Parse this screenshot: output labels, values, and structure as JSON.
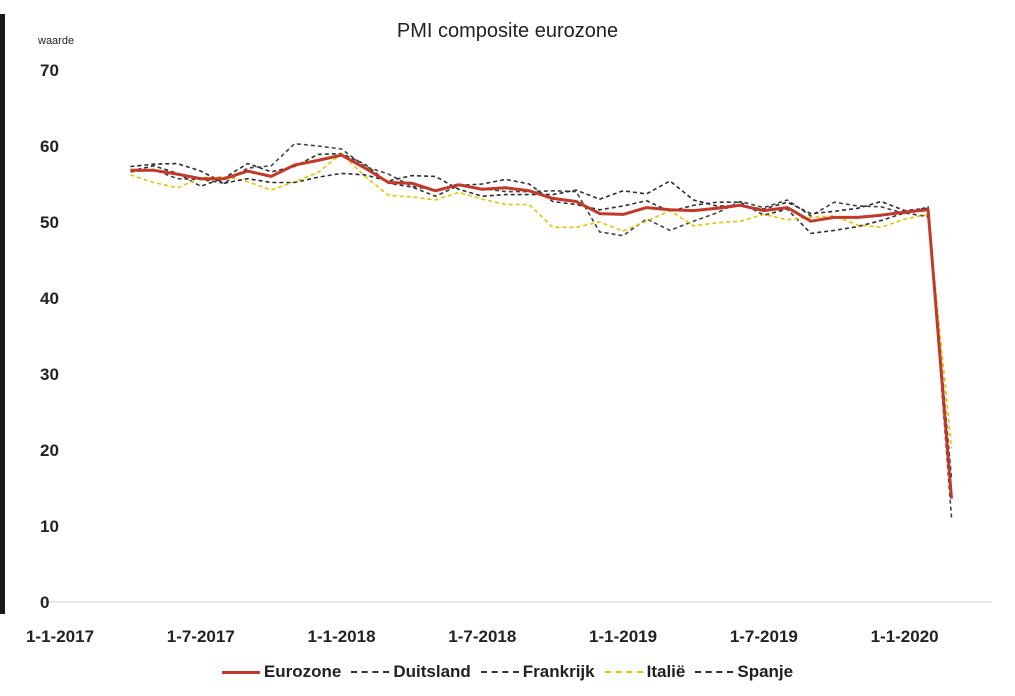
{
  "chart_data": {
    "type": "line",
    "title": "PMI composite eurozone",
    "ylabel": "waarde",
    "xlabel": "",
    "ylim": [
      0,
      70
    ],
    "yticks": [
      0,
      10,
      20,
      30,
      40,
      50,
      60,
      70
    ],
    "xticks": [
      "1-1-2017",
      "1-7-2017",
      "1-1-2018",
      "1-7-2018",
      "1-1-2019",
      "1-7-2019",
      "1-1-2020"
    ],
    "x": [
      "2017-04",
      "2017-05",
      "2017-06",
      "2017-07",
      "2017-08",
      "2017-09",
      "2017-10",
      "2017-11",
      "2017-12",
      "2018-01",
      "2018-02",
      "2018-03",
      "2018-04",
      "2018-05",
      "2018-06",
      "2018-07",
      "2018-08",
      "2018-09",
      "2018-10",
      "2018-11",
      "2018-12",
      "2019-01",
      "2019-02",
      "2019-03",
      "2019-04",
      "2019-05",
      "2019-06",
      "2019-07",
      "2019-08",
      "2019-09",
      "2019-10",
      "2019-11",
      "2019-12",
      "2020-01",
      "2020-02",
      "2020-03"
    ],
    "series": [
      {
        "name": "Eurozone",
        "color": "#c0392b",
        "style": "solid",
        "values": [
          56.8,
          56.8,
          56.3,
          55.7,
          55.7,
          56.7,
          56.0,
          57.5,
          58.1,
          58.8,
          57.1,
          55.2,
          55.1,
          54.1,
          54.9,
          54.3,
          54.5,
          54.1,
          53.1,
          52.7,
          51.1,
          51.0,
          51.9,
          51.6,
          51.5,
          51.8,
          52.2,
          51.5,
          51.9,
          50.1,
          50.6,
          50.6,
          50.9,
          51.3,
          51.6,
          13.6
        ]
      },
      {
        "name": "Duitsland",
        "color": "#333333",
        "style": "dashed",
        "values": [
          56.7,
          57.4,
          56.4,
          54.7,
          55.8,
          57.7,
          56.6,
          57.3,
          58.9,
          59.0,
          57.6,
          55.1,
          54.6,
          53.4,
          54.8,
          55.0,
          55.6,
          55.0,
          52.7,
          52.3,
          51.6,
          52.1,
          52.8,
          51.4,
          52.2,
          52.6,
          52.6,
          50.9,
          51.7,
          48.5,
          48.9,
          49.4,
          50.2,
          51.2,
          50.7,
          16.2
        ]
      },
      {
        "name": "Frankrijk",
        "color": "#444444",
        "style": "dashed",
        "values": [
          56.6,
          56.9,
          55.7,
          55.6,
          55.1,
          57.1,
          57.4,
          60.3,
          60.0,
          59.6,
          57.3,
          56.3,
          54.7,
          54.2,
          55.0,
          54.4,
          54.0,
          54.0,
          54.1,
          54.0,
          48.7,
          48.2,
          50.4,
          48.9,
          50.1,
          51.2,
          52.7,
          51.9,
          52.9,
          50.8,
          52.6,
          52.1,
          52.0,
          51.1,
          52.0,
          11.1
        ]
      },
      {
        "name": "Italië",
        "color": "#e6c200",
        "style": "dashed",
        "values": [
          56.2,
          55.2,
          54.5,
          55.8,
          56.0,
          55.3,
          54.2,
          55.3,
          56.5,
          59.0,
          56.0,
          53.5,
          53.3,
          52.9,
          53.9,
          53.0,
          52.3,
          52.3,
          49.3,
          49.3,
          50.0,
          48.8,
          50.1,
          51.5,
          49.5,
          49.9,
          50.1,
          51.0,
          50.3,
          50.6,
          50.8,
          49.6,
          49.3,
          50.4,
          51.0,
          20.2
        ]
      },
      {
        "name": "Spanje",
        "color": "#2b2b3a",
        "style": "dashed",
        "values": [
          57.3,
          57.6,
          57.7,
          56.7,
          55.1,
          55.7,
          55.2,
          55.2,
          55.9,
          56.4,
          56.2,
          55.4,
          56.1,
          56.0,
          54.3,
          53.4,
          53.6,
          53.6,
          53.6,
          54.2,
          53.0,
          54.1,
          53.7,
          55.4,
          52.9,
          52.1,
          52.1,
          51.7,
          52.6,
          51.1,
          51.4,
          51.8,
          52.7,
          51.5,
          51.8,
          13.9
        ]
      }
    ]
  }
}
